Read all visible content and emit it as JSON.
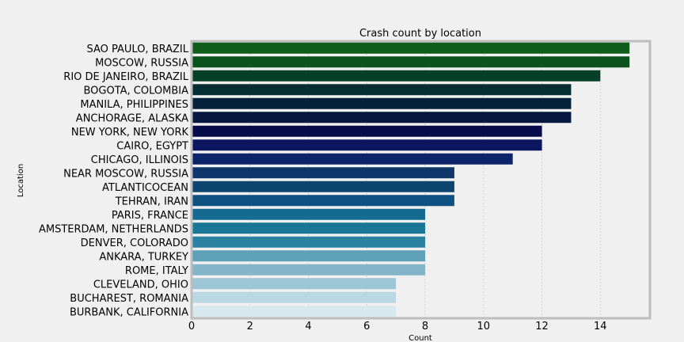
{
  "chart_data": {
    "type": "bar",
    "orientation": "horizontal",
    "title": "Crash count by location",
    "xlabel": "Count",
    "ylabel": "Location",
    "xlim": [
      0,
      15.7
    ],
    "xticks": [
      "0",
      "2",
      "4",
      "6",
      "8",
      "10",
      "12",
      "14"
    ],
    "grid": true,
    "categories": [
      "SAO PAULO, BRAZIL",
      "MOSCOW, RUSSIA",
      "RIO DE JANEIRO, BRAZIL",
      "BOGOTA, COLOMBIA",
      "MANILA, PHILIPPINES",
      "ANCHORAGE, ALASKA",
      "NEW YORK, NEW YORK",
      "CAIRO, EGYPT",
      "CHICAGO, ILLINOIS",
      "NEAR MOSCOW, RUSSIA",
      "ATLANTICOCEAN",
      "TEHRAN, IRAN",
      "PARIS, FRANCE",
      "AMSTERDAM, NETHERLANDS",
      "DENVER, COLORADO",
      "ANKARA, TURKEY",
      "ROME, ITALY",
      "CLEVELAND, OHIO",
      "BUCHAREST, ROMANIA",
      "BURBANK, CALIFORNIA"
    ],
    "values": [
      15,
      15,
      14,
      13,
      13,
      13,
      12,
      12,
      11,
      9,
      9,
      9,
      8,
      8,
      8,
      8,
      8,
      7,
      7,
      7
    ],
    "colors": [
      "#0f5c1d",
      "#0b521c",
      "#06402a",
      "#062e33",
      "#06223b",
      "#061840",
      "#060b4a",
      "#0b1560",
      "#0c2468",
      "#0e366b",
      "#0e456f",
      "#0f5281",
      "#146a8f",
      "#1a7695",
      "#2b82a0",
      "#5ea0b8",
      "#83b4c8",
      "#9cc5d5",
      "#b9d8e2",
      "#d7e9ef"
    ]
  }
}
